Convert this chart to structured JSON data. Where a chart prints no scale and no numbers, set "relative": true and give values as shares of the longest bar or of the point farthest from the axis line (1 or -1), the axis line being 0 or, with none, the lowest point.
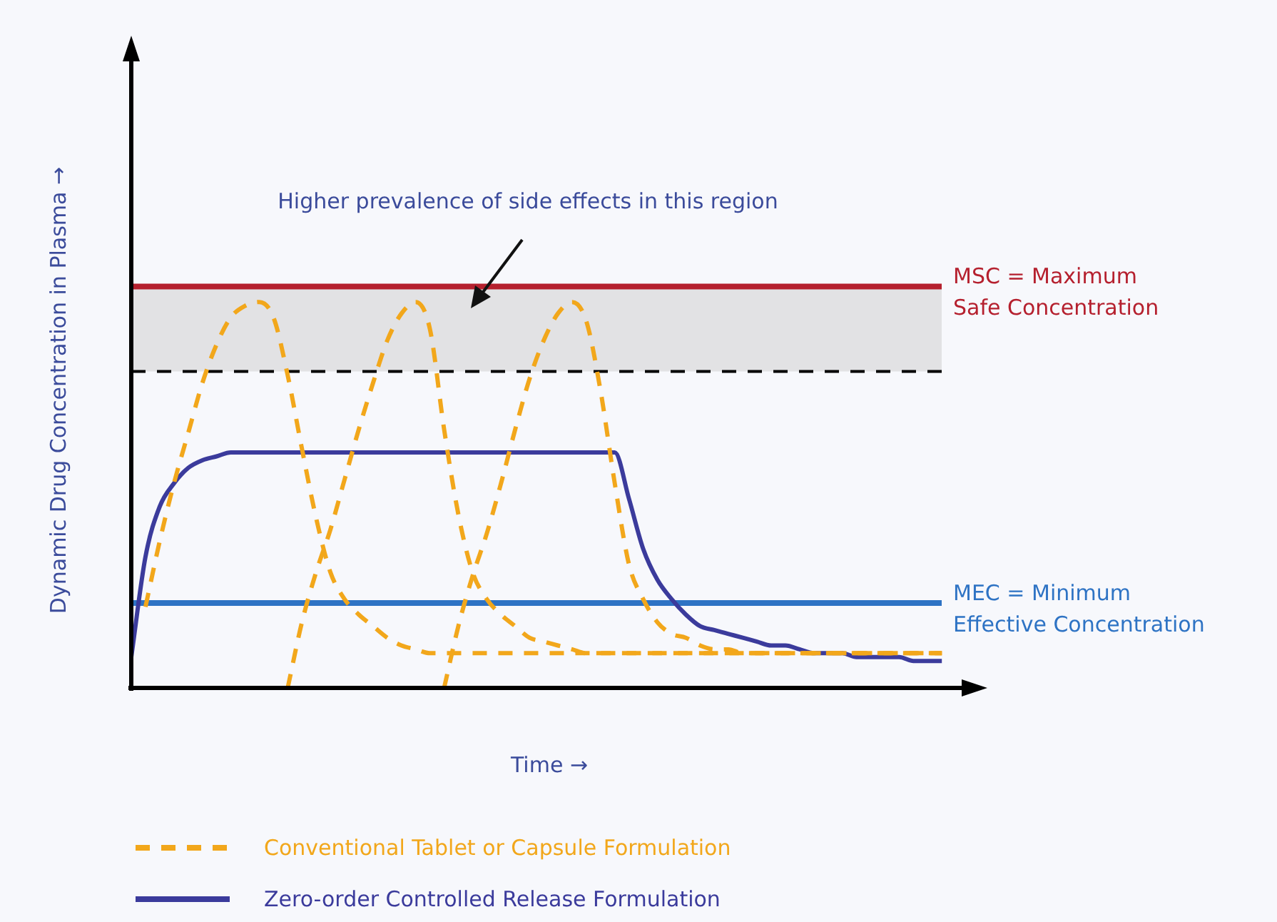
{
  "chart_data": {
    "type": "line",
    "relative": true,
    "xlabel": "Time →",
    "ylabel": "Dynamic Drug Concentration in Plasma →",
    "annotations": [
      "Higher prevalence of side effects in this region"
    ],
    "categories": [
      null,
      null,
      null,
      null,
      null,
      null,
      null,
      null,
      null,
      null,
      null,
      null,
      null,
      null,
      null,
      null,
      null,
      null,
      null,
      null,
      null,
      null,
      null,
      null,
      null,
      null,
      null,
      null,
      null,
      null,
      null,
      null,
      null,
      null,
      null,
      null,
      null,
      null,
      null,
      null,
      null,
      null,
      null,
      null,
      null,
      null,
      null,
      null,
      null,
      null,
      null,
      null,
      null,
      null,
      null,
      null,
      null,
      null,
      null,
      null,
      null
    ],
    "legend": "bottom",
    "marker": "none",
    "series": [
      {
        "name": "Conventional Tablet or Capsule Formulation",
        "color": "#f2a71b",
        "line_style": "dashed",
        "values": [
          null,
          0.21,
          0.38,
          0.53,
          0.66,
          0.79,
          0.89,
          0.96,
          0.99,
          1.0,
          0.96,
          0.81,
          0.62,
          0.44,
          0.3,
          0.23,
          0.19,
          0.16,
          0.13,
          0.11,
          0.1,
          0.09,
          0.09,
          0.09,
          0.09,
          0.09,
          0.09,
          0.09,
          0.09,
          0.09,
          0.09,
          0.09,
          0.09,
          0.09,
          0.09,
          0.09,
          0.09,
          0.09,
          0.09,
          0.09,
          0.09,
          0.09,
          0.09,
          0.09,
          0.09,
          0.09,
          0.09,
          0.09,
          0.09,
          0.09,
          0.09,
          0.09,
          0.09,
          0.09,
          0.09,
          0.09,
          0.09,
          0.09,
          null,
          null,
          null
        ]
      },
      {
        "color": "#f2a71b",
        "line_style": "dashed",
        "values": [
          null,
          null,
          null,
          null,
          null,
          null,
          null,
          null,
          null,
          null,
          null,
          0.0,
          0.17,
          0.3,
          0.41,
          0.54,
          0.67,
          0.79,
          0.9,
          0.97,
          1.0,
          0.93,
          0.67,
          0.45,
          0.3,
          0.23,
          0.19,
          0.16,
          0.13,
          0.12,
          0.11,
          0.1,
          0.09,
          0.09,
          0.09,
          0.09,
          0.09,
          0.09,
          0.09,
          0.09,
          0.09,
          0.09,
          0.09,
          0.09,
          0.09,
          0.09,
          0.09,
          0.09,
          0.09,
          0.09,
          0.09,
          0.09,
          0.09,
          0.09,
          0.09,
          0.09,
          0.09,
          0.09,
          null,
          null,
          null
        ]
      },
      {
        "color": "#f2a71b",
        "line_style": "dashed",
        "values": [
          null,
          null,
          null,
          null,
          null,
          null,
          null,
          null,
          null,
          null,
          null,
          null,
          null,
          null,
          null,
          null,
          null,
          null,
          null,
          null,
          null,
          null,
          0.0,
          0.16,
          0.29,
          0.4,
          0.53,
          0.67,
          0.8,
          0.9,
          0.97,
          1.0,
          0.95,
          0.77,
          0.53,
          0.32,
          0.23,
          0.17,
          0.14,
          0.13,
          0.11,
          0.1,
          0.1,
          0.09,
          0.09,
          0.09,
          0.09,
          0.09,
          0.09,
          0.09,
          0.09,
          0.09,
          0.09,
          0.09,
          0.09,
          0.09,
          0.09,
          0.09,
          null,
          null,
          null
        ]
      },
      {
        "name": "Zero-order Controlled Release Formulation",
        "color": "#3b3b9c",
        "line_style": "solid",
        "values": [
          0.08,
          0.34,
          0.47,
          0.53,
          0.57,
          0.59,
          0.6,
          0.61,
          0.61,
          0.61,
          0.61,
          0.61,
          0.61,
          0.61,
          0.61,
          0.61,
          0.61,
          0.61,
          0.61,
          0.61,
          0.61,
          0.61,
          0.61,
          0.61,
          0.61,
          0.61,
          0.61,
          0.61,
          0.61,
          0.61,
          0.61,
          0.61,
          0.61,
          0.61,
          0.61,
          0.49,
          0.36,
          0.28,
          0.23,
          0.19,
          0.16,
          0.15,
          0.14,
          0.13,
          0.12,
          0.11,
          0.11,
          0.1,
          0.09,
          0.09,
          0.09,
          0.08,
          0.08,
          0.08,
          0.08,
          0.07,
          0.07,
          0.07,
          null,
          null,
          null
        ]
      }
    ],
    "ref_lines": [
      {
        "axis": "y",
        "value": 1.04,
        "label": "MSC = Maximum Safe Concentration",
        "color": "#b5202e"
      },
      {
        "axis": "y",
        "value": 0.82,
        "color": "#000000",
        "line_style": "dashed"
      },
      {
        "axis": "y",
        "value": 0.22,
        "label": "MEC = Minimum Effective Concentration",
        "color": "#2e73c4"
      }
    ],
    "bands": [
      {
        "axis": "y",
        "from": 0.82,
        "to": 1.04,
        "color": "#e2e2e4"
      }
    ]
  }
}
